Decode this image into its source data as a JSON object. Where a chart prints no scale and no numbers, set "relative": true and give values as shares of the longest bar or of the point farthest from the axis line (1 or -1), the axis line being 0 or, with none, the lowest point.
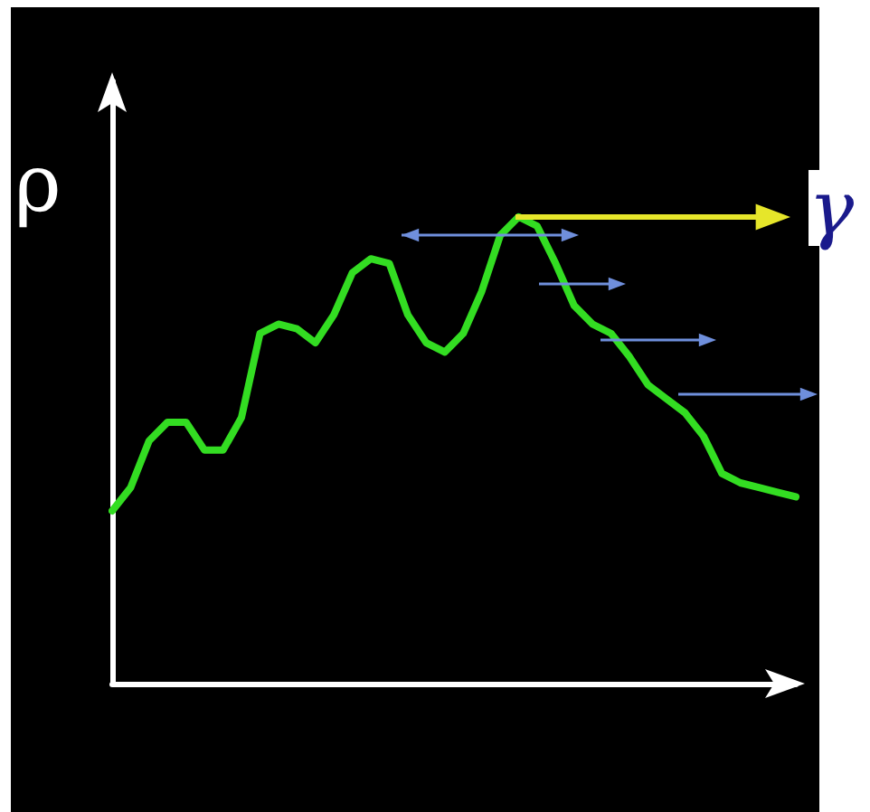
{
  "chart_data": {
    "type": "line",
    "relative": true,
    "ylabel": "ρ",
    "annotations": [
      "γ"
    ],
    "categories": [
      null,
      null,
      null,
      null,
      null,
      null,
      null,
      null,
      null,
      null,
      null,
      null,
      null,
      null,
      null,
      null,
      null,
      null,
      null,
      null,
      null,
      null,
      null,
      null,
      null,
      null,
      null,
      null,
      null,
      null,
      null,
      null,
      null,
      null,
      null,
      null,
      null,
      null
    ],
    "series": [
      {
        "color": "#33dd22",
        "values": [
          0.37,
          0.42,
          0.52,
          0.56,
          0.56,
          0.5,
          0.5,
          0.57,
          0.75,
          0.77,
          0.76,
          0.73,
          0.79,
          0.88,
          0.91,
          0.9,
          0.79,
          0.73,
          0.71,
          0.75,
          0.84,
          0.96,
          1,
          0.98,
          0.9,
          0.81,
          0.77,
          0.75,
          0.7,
          0.64,
          0.61,
          0.58,
          0.53,
          0.45,
          0.43,
          0.42,
          0.41,
          0.4
        ]
      }
    ],
    "marker": "none",
    "line_style": "solid"
  }
}
